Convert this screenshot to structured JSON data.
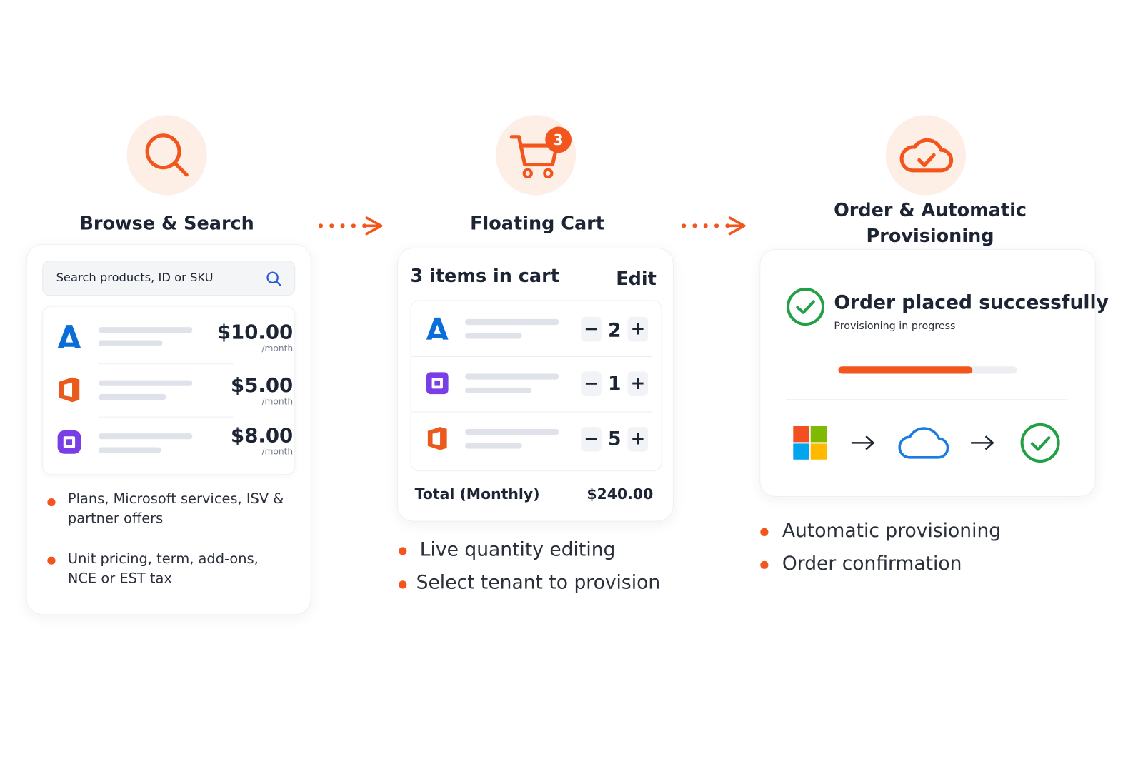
{
  "steps": [
    {
      "title": "Browse & Search",
      "search_placeholder": "Search products, ID or SKU",
      "products": [
        {
          "price": "$10.00",
          "unit": "/month"
        },
        {
          "price": "$5.00",
          "unit": "/month"
        },
        {
          "price": "$8.00",
          "unit": "/month"
        }
      ],
      "bullets": [
        "Plans, Microsoft services, ISV & partner offers",
        "Unit pricing, term, add-ons, NCE or EST tax"
      ]
    },
    {
      "title": "Floating Cart",
      "badge": 3,
      "header": "3 items in cart",
      "edit": "Edit",
      "quantities": [
        2,
        1,
        5
      ],
      "total_label": "Total (Monthly)",
      "total": "$240.00",
      "bullets": [
        "Live quantity editing",
        "Select tenant to provision"
      ]
    },
    {
      "title": "Order & Automatic Provisioning",
      "status": "Order placed successfully",
      "substatus": "Provisioning in progress",
      "progress": 75,
      "bullets": [
        "Automatic provisioning",
        "Order confirmation"
      ]
    }
  ]
}
